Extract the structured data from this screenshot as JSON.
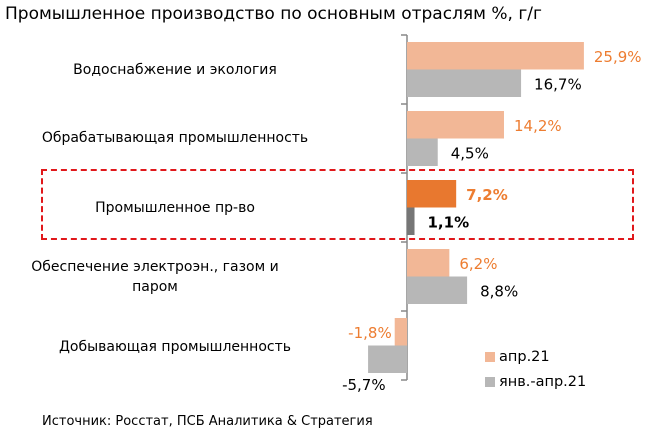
{
  "chart_data": {
    "type": "bar",
    "orientation": "horizontal",
    "title": "Промышленное производство по основным отраслям %, г/г",
    "categories": [
      "Водоснабжение и экология",
      "Обрабатывающая промышленность",
      "Промышленное пр-во",
      "Обеспечение электроэн., газом и паром",
      "Добывающая промышленность"
    ],
    "series": [
      {
        "name": "апр.21",
        "values": [
          25.9,
          14.2,
          7.2,
          6.2,
          -1.8
        ],
        "labels": [
          "25,9%",
          "14,2%",
          "7,2%",
          "6,2%",
          "-1,8%"
        ],
        "color": "#f2b796",
        "highlight_color": "#e8782f",
        "label_color": "#ed7d31"
      },
      {
        "name": "янв.-апр.21",
        "values": [
          16.7,
          4.5,
          1.1,
          8.8,
          -5.7
        ],
        "labels": [
          "16,7%",
          "4,5%",
          "1,1%",
          "8,8%",
          "-5,7%"
        ],
        "color": "#b7b7b7",
        "highlight_color": "#767676",
        "label_color": "#000000"
      }
    ],
    "highlighted_category": "Промышленное пр-во",
    "legend_position": "bottom-right",
    "grid": false
  },
  "source": "Источник: Росстат, ПСБ Аналитика & Стратегия"
}
